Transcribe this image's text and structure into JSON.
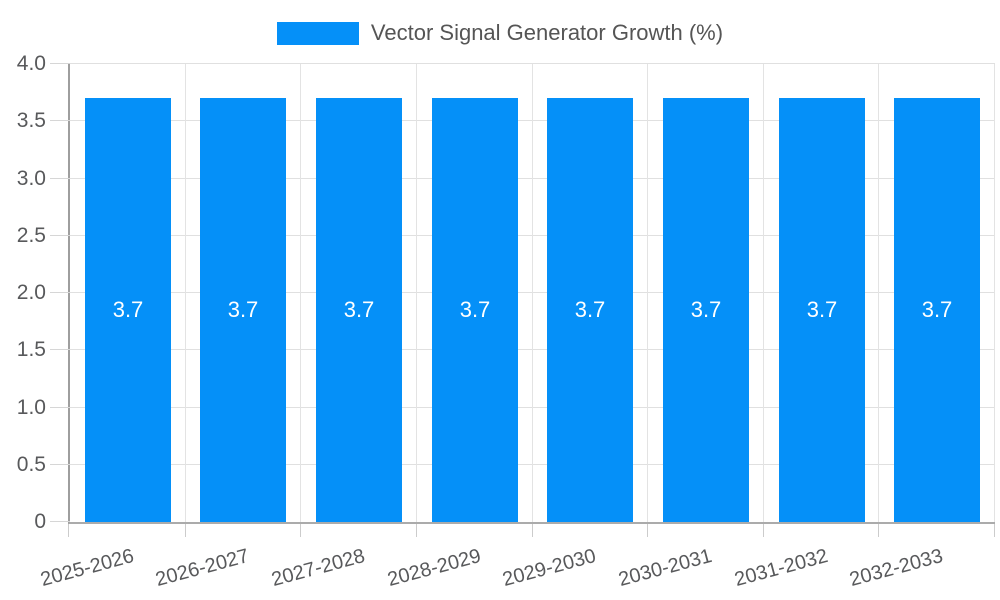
{
  "legend": {
    "label": "Vector Signal Generator Growth (%)"
  },
  "chart_data": {
    "type": "bar",
    "series_name": "Vector Signal Generator Growth (%)",
    "categories": [
      "2025-2026",
      "2026-2027",
      "2027-2028",
      "2028-2029",
      "2029-2030",
      "2030-2031",
      "2031-2032",
      "2032-2033"
    ],
    "values": [
      3.7,
      3.7,
      3.7,
      3.7,
      3.7,
      3.7,
      3.7,
      3.7
    ],
    "value_labels": [
      "3.7",
      "3.7",
      "3.7",
      "3.7",
      "3.7",
      "3.7",
      "3.7",
      "3.7"
    ],
    "xlabel": "",
    "ylabel": "",
    "ylim": [
      0,
      4
    ],
    "ytick_values": [
      0,
      0.5,
      1,
      1.5,
      2,
      2.5,
      3,
      3.5,
      4
    ],
    "ytick_labels": [
      "0",
      "0.5",
      "1.0",
      "1.5",
      "2.0",
      "2.5",
      "3.0",
      "3.5",
      "4.0"
    ],
    "grid": true,
    "legend_position": "top",
    "colors": {
      "bar": "#0590F8",
      "grid_h": "#E0E0E0",
      "grid_v": "#E3E3E3",
      "axis": "#9E9E9E",
      "tick_text": "#58595B",
      "value_text": "#FFFFFF",
      "background": "#FFFFFF"
    }
  }
}
